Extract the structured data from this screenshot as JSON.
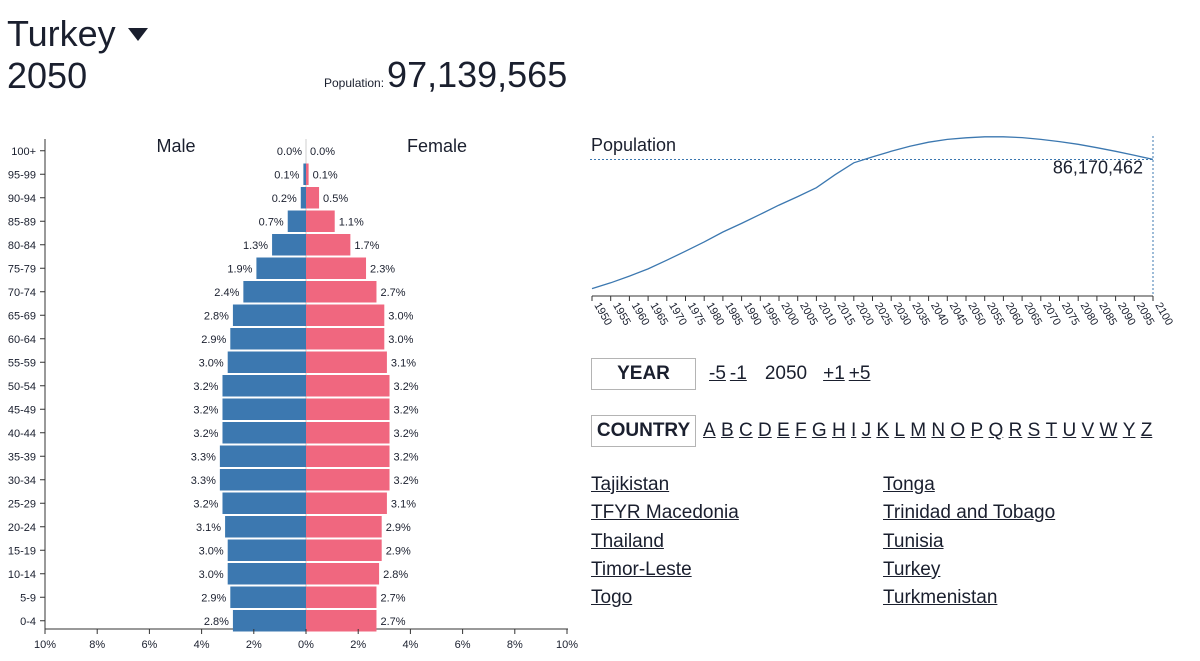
{
  "header": {
    "country": "Turkey",
    "year": "2050",
    "population_label": "Population:",
    "population_value": "97,139,565"
  },
  "chart_data": [
    {
      "type": "bar",
      "orientation": "horizontal",
      "title": "",
      "columns": [
        "Male",
        "Female"
      ],
      "categories": [
        "100+",
        "95-99",
        "90-94",
        "85-89",
        "80-84",
        "75-79",
        "70-74",
        "65-69",
        "60-64",
        "55-59",
        "50-54",
        "45-49",
        "40-44",
        "35-39",
        "30-34",
        "25-29",
        "20-24",
        "15-19",
        "10-14",
        "5-9",
        "0-4"
      ],
      "series": [
        {
          "name": "Male",
          "color": "#3c78b0",
          "values": [
            0.0,
            0.1,
            0.2,
            0.7,
            1.3,
            1.9,
            2.4,
            2.8,
            2.9,
            3.0,
            3.2,
            3.2,
            3.2,
            3.3,
            3.3,
            3.2,
            3.1,
            3.0,
            3.0,
            2.9,
            2.8
          ]
        },
        {
          "name": "Female",
          "color": "#f0677f",
          "values": [
            0.0,
            0.1,
            0.5,
            1.1,
            1.7,
            2.3,
            2.7,
            3.0,
            3.0,
            3.1,
            3.2,
            3.2,
            3.2,
            3.2,
            3.2,
            3.1,
            2.9,
            2.9,
            2.8,
            2.7,
            2.7
          ]
        }
      ],
      "x_ticks": [
        "10%",
        "8%",
        "6%",
        "4%",
        "2%",
        "0%",
        "2%",
        "4%",
        "6%",
        "8%",
        "10%"
      ],
      "xlim": [
        -10,
        10
      ]
    },
    {
      "type": "line",
      "title": "Population",
      "x": [
        1950,
        1955,
        1960,
        1965,
        1970,
        1975,
        1980,
        1985,
        1990,
        1995,
        2000,
        2005,
        2010,
        2015,
        2020,
        2025,
        2030,
        2035,
        2040,
        2045,
        2050,
        2055,
        2060,
        2065,
        2070,
        2075,
        2080,
        2085,
        2090,
        2095,
        2100
      ],
      "values": [
        21.2,
        24.1,
        27.5,
        31.1,
        35.5,
        40.0,
        44.7,
        49.7,
        54.0,
        58.6,
        63.2,
        67.5,
        72.0,
        78.5,
        84.5,
        87.5,
        90.3,
        92.8,
        94.9,
        96.3,
        97.1,
        97.6,
        97.6,
        97.2,
        96.3,
        95.2,
        93.8,
        92.1,
        90.3,
        88.3,
        86.2
      ],
      "value_unit": "millions",
      "highlighted_value": "86,170,462",
      "highlighted_year": 2100,
      "xlim": [
        1950,
        2100
      ],
      "ylim": [
        21,
        98
      ]
    }
  ],
  "controls": {
    "year_label": "YEAR",
    "year_steps_back": [
      "-5",
      "-1"
    ],
    "year_current": "2050",
    "year_steps_forward": [
      "+1",
      "+5"
    ],
    "country_label": "COUNTRY",
    "letters": [
      "A",
      "B",
      "C",
      "D",
      "E",
      "F",
      "G",
      "H",
      "I",
      "J",
      "K",
      "L",
      "M",
      "N",
      "O",
      "P",
      "Q",
      "R",
      "S",
      "T",
      "U",
      "V",
      "W",
      "Y",
      "Z"
    ]
  },
  "countries": [
    "Tajikistan",
    "TFYR Macedonia",
    "Thailand",
    "Timor-Leste",
    "Togo",
    "Tonga",
    "Trinidad and Tobago",
    "Tunisia",
    "Turkey",
    "Turkmenistan"
  ]
}
